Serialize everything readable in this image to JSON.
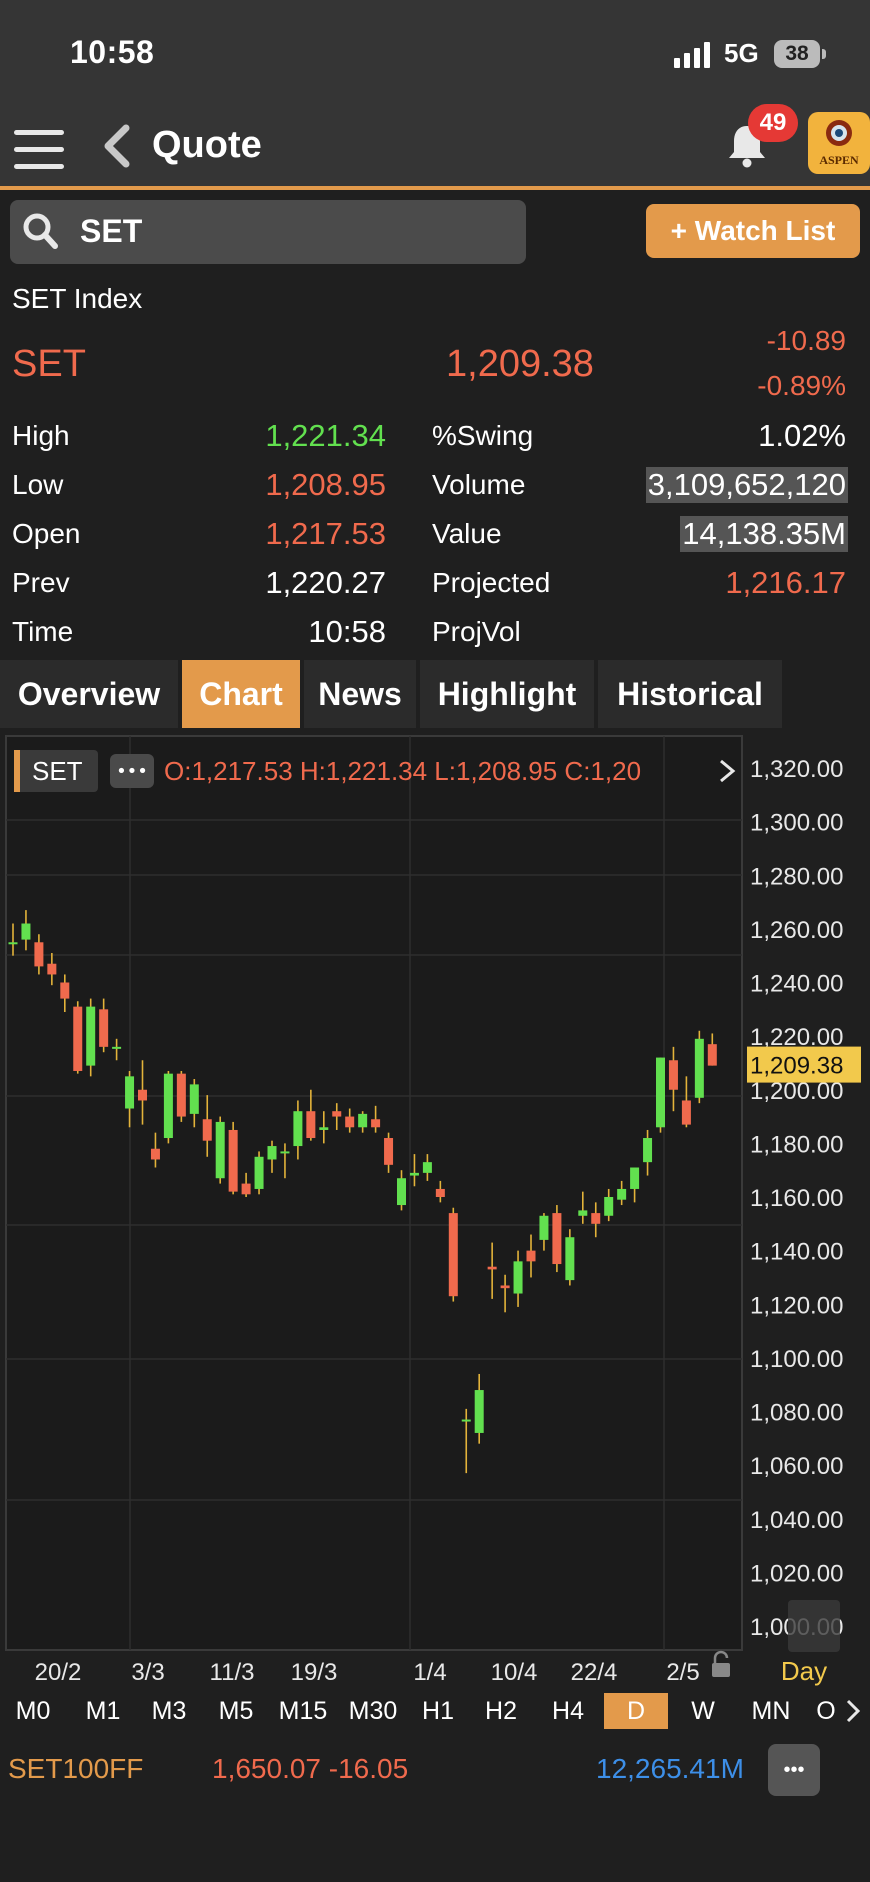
{
  "status_bar": {
    "time": "10:58",
    "network": "5G",
    "battery": "38"
  },
  "nav": {
    "title": "Quote",
    "notification_count": "49",
    "logo_text": "ASPEN"
  },
  "search": {
    "value": "SET",
    "watch_button": "+ Watch List"
  },
  "quote": {
    "name": "SET Index",
    "symbol": "SET",
    "last": "1,209.38",
    "change": "-10.89",
    "change_pct": "-0.89%",
    "fields": [
      {
        "label": "High",
        "value": "1,221.34",
        "color": "#62e04f"
      },
      {
        "label": "Low",
        "value": "1,208.95",
        "color": "#f06a4d"
      },
      {
        "label": "Open",
        "value": "1,217.53",
        "color": "#f06a4d"
      },
      {
        "label": "Prev",
        "value": "1,220.27",
        "color": "#ffffff"
      },
      {
        "label": "Time",
        "value": "10:58",
        "color": "#ffffff"
      }
    ],
    "fields_right": [
      {
        "label": "%Swing",
        "value": "1.02%",
        "color": "#ffffff"
      },
      {
        "label": "Volume",
        "value": "3,109,652,120",
        "color": "#ffffff"
      },
      {
        "label": "Value",
        "value": "14,138.35M",
        "color": "#ffffff"
      },
      {
        "label": "Projected",
        "value": "1,216.17",
        "color": "#f06a4d"
      },
      {
        "label": "ProjVol",
        "value": "",
        "color": "#ffffff"
      }
    ]
  },
  "tabs": [
    "Overview",
    "Chart",
    "News",
    "Highlight",
    "Historical"
  ],
  "active_tab": "Chart",
  "chart_header": {
    "symbol": "SET",
    "more": "•••",
    "ohlc": "O:1,217.53  H:1,221.34  L:1,208.95  C:1,20"
  },
  "chart_data": {
    "type": "candlestick",
    "y_ticks": [
      "1,320.00",
      "1,300.00",
      "1,280.00",
      "1,260.00",
      "1,240.00",
      "1,220.00",
      "1,200.00",
      "1,180.00",
      "1,160.00",
      "1,140.00",
      "1,120.00",
      "1,100.00",
      "1,080.00",
      "1,060.00",
      "1,040.00",
      "1,020.00",
      "1,000.00"
    ],
    "ylim": [
      1000,
      1320
    ],
    "x_labels": [
      "20/2",
      "3/3",
      "11/3",
      "19/3",
      "1/4",
      "10/4",
      "22/4",
      "2/5"
    ],
    "last_price_label": "1,209.38",
    "period_label": "Day",
    "candles": [
      {
        "o": 1255,
        "h": 1262,
        "l": 1250,
        "c": 1255
      },
      {
        "o": 1256,
        "h": 1267,
        "l": 1252,
        "c": 1262
      },
      {
        "o": 1255,
        "h": 1258,
        "l": 1243,
        "c": 1246
      },
      {
        "o": 1247,
        "h": 1251,
        "l": 1239,
        "c": 1243
      },
      {
        "o": 1240,
        "h": 1243,
        "l": 1229,
        "c": 1234
      },
      {
        "o": 1231,
        "h": 1233,
        "l": 1206,
        "c": 1207
      },
      {
        "o": 1209,
        "h": 1234,
        "l": 1205,
        "c": 1231
      },
      {
        "o": 1230,
        "h": 1234,
        "l": 1214,
        "c": 1216
      },
      {
        "o": 1216,
        "h": 1219,
        "l": 1211,
        "c": 1216
      },
      {
        "o": 1193,
        "h": 1207,
        "l": 1186,
        "c": 1205
      },
      {
        "o": 1200,
        "h": 1211,
        "l": 1187,
        "c": 1196
      },
      {
        "o": 1178,
        "h": 1184,
        "l": 1171,
        "c": 1174
      },
      {
        "o": 1182,
        "h": 1207,
        "l": 1180,
        "c": 1206
      },
      {
        "o": 1206,
        "h": 1207,
        "l": 1188,
        "c": 1190
      },
      {
        "o": 1191,
        "h": 1204,
        "l": 1186,
        "c": 1202
      },
      {
        "o": 1189,
        "h": 1198,
        "l": 1175,
        "c": 1181
      },
      {
        "o": 1167,
        "h": 1190,
        "l": 1165,
        "c": 1188
      },
      {
        "o": 1185,
        "h": 1188,
        "l": 1161,
        "c": 1162
      },
      {
        "o": 1165,
        "h": 1169,
        "l": 1160,
        "c": 1161
      },
      {
        "o": 1163,
        "h": 1177,
        "l": 1161,
        "c": 1175
      },
      {
        "o": 1174,
        "h": 1181,
        "l": 1169,
        "c": 1179
      },
      {
        "o": 1177,
        "h": 1180,
        "l": 1167,
        "c": 1177
      },
      {
        "o": 1179,
        "h": 1196,
        "l": 1174,
        "c": 1192
      },
      {
        "o": 1192,
        "h": 1200,
        "l": 1181,
        "c": 1182
      },
      {
        "o": 1185,
        "h": 1192,
        "l": 1180,
        "c": 1186
      },
      {
        "o": 1192,
        "h": 1195,
        "l": 1185,
        "c": 1190
      },
      {
        "o": 1190,
        "h": 1193,
        "l": 1184,
        "c": 1186
      },
      {
        "o": 1186,
        "h": 1192,
        "l": 1184,
        "c": 1191
      },
      {
        "o": 1189,
        "h": 1194,
        "l": 1184,
        "c": 1186
      },
      {
        "o": 1182,
        "h": 1184,
        "l": 1169,
        "c": 1172
      },
      {
        "o": 1157,
        "h": 1170,
        "l": 1155,
        "c": 1167
      },
      {
        "o": 1168,
        "h": 1176,
        "l": 1164,
        "c": 1169
      },
      {
        "o": 1169,
        "h": 1176,
        "l": 1166,
        "c": 1173
      },
      {
        "o": 1163,
        "h": 1166,
        "l": 1158,
        "c": 1160
      },
      {
        "o": 1154,
        "h": 1156,
        "l": 1121,
        "c": 1123
      },
      {
        "o": 1077,
        "h": 1081,
        "l": 1057,
        "c": 1077
      },
      {
        "o": 1072,
        "h": 1094,
        "l": 1068,
        "c": 1088
      },
      {
        "o": 1134,
        "h": 1143,
        "l": 1122,
        "c": 1133
      },
      {
        "o": 1127,
        "h": 1131,
        "l": 1117,
        "c": 1126
      },
      {
        "o": 1124,
        "h": 1140,
        "l": 1119,
        "c": 1136
      },
      {
        "o": 1140,
        "h": 1146,
        "l": 1130,
        "c": 1136
      },
      {
        "o": 1144,
        "h": 1154,
        "l": 1140,
        "c": 1153
      },
      {
        "o": 1154,
        "h": 1157,
        "l": 1132,
        "c": 1135
      },
      {
        "o": 1129,
        "h": 1148,
        "l": 1127,
        "c": 1145
      },
      {
        "o": 1153,
        "h": 1162,
        "l": 1150,
        "c": 1155
      },
      {
        "o": 1154,
        "h": 1158,
        "l": 1145,
        "c": 1150
      },
      {
        "o": 1153,
        "h": 1163,
        "l": 1151,
        "c": 1160
      },
      {
        "o": 1159,
        "h": 1166,
        "l": 1157,
        "c": 1163
      },
      {
        "o": 1163,
        "h": 1171,
        "l": 1158,
        "c": 1171
      },
      {
        "o": 1173,
        "h": 1185,
        "l": 1168,
        "c": 1182
      },
      {
        "o": 1186,
        "h": 1212,
        "l": 1184,
        "c": 1212
      },
      {
        "o": 1211,
        "h": 1216,
        "l": 1192,
        "c": 1200
      },
      {
        "o": 1196,
        "h": 1205,
        "l": 1186,
        "c": 1187
      },
      {
        "o": 1197,
        "h": 1222,
        "l": 1195,
        "c": 1219
      },
      {
        "o": 1217,
        "h": 1221,
        "l": 1209,
        "c": 1209
      }
    ]
  },
  "timeframes": [
    "M0",
    "M1",
    "M3",
    "M5",
    "M15",
    "M30",
    "H1",
    "H2",
    "H4",
    "D",
    "W",
    "MN",
    "O"
  ],
  "active_timeframe": "D",
  "ticker": {
    "symbol": "SET100FF",
    "price_change": "1,650.07 -16.05",
    "value": "12,265.41M",
    "more": "•••"
  },
  "colors": {
    "accent": "#e39a4b",
    "up": "#62e04f",
    "down": "#f06a4d",
    "badge": "#e53935",
    "value_blue": "#3d8fe8"
  }
}
